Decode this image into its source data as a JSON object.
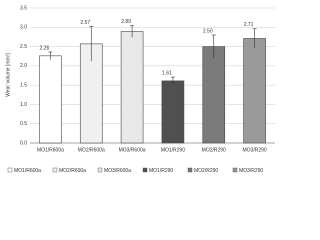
{
  "chart_data": {
    "type": "bar",
    "y_label": "Wear volume [mm³]",
    "categories": [
      "MO1/R600a",
      "MO2/R600a",
      "MO3/R600a",
      "MO1/R290",
      "MO2/R290",
      "MO3/R290"
    ],
    "values": [
      2.26,
      2.57,
      2.89,
      1.61,
      2.5,
      2.71
    ],
    "value_labels": [
      "2.26",
      "2.57",
      "2.89",
      "1.61",
      "2.50",
      "2.71"
    ],
    "errors": [
      0.1,
      0.45,
      0.15,
      0.1,
      0.3,
      0.25
    ],
    "colors": [
      "#ffffff",
      "#f0f0f0",
      "#e8e8e8",
      "#505050",
      "#7a7a7a",
      "#9a9a9a"
    ],
    "ylim": [
      0,
      3.5
    ],
    "yticks": [
      {
        "value": 0,
        "label": "0.0"
      },
      0.5,
      {
        "value": 1,
        "label": "1.0"
      },
      1.5,
      {
        "value": 2,
        "label": "2.0"
      },
      2.5,
      {
        "value": 3,
        "label": "3.0"
      },
      3.5
    ],
    "grid": true
  }
}
